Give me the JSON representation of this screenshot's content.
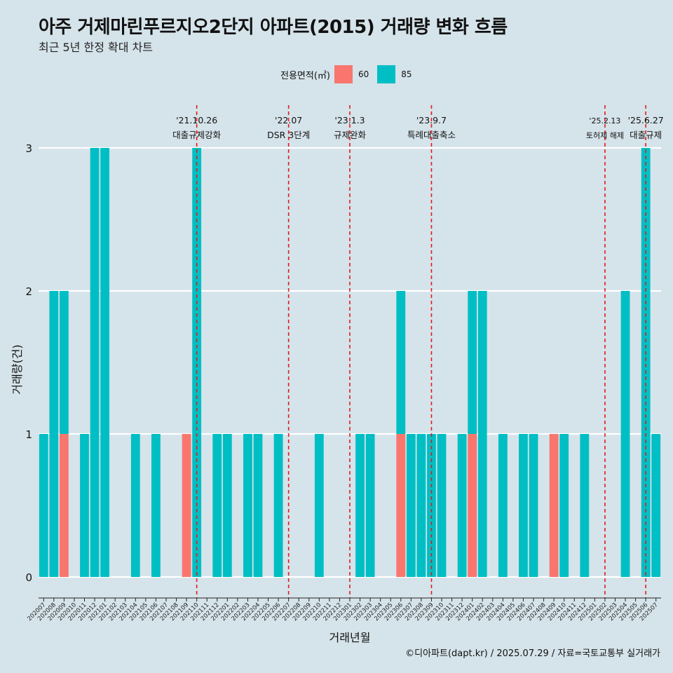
{
  "chart_data": {
    "type": "bar",
    "title": "아주 거제마린푸르지오2단지 아파트(2015) 거래량 변화 흐름",
    "subtitle": "최근 5년 한정 확대 차트",
    "xlabel": "거래년월",
    "ylabel": "거래량(건)",
    "ylim": [
      0,
      3
    ],
    "yticks": [
      0,
      1,
      2,
      3
    ],
    "legend_title": "전용면적(㎡)",
    "legend_position": "top",
    "grid": "horizontal",
    "categories": [
      "202007",
      "202008",
      "202009",
      "202010",
      "202011",
      "202012",
      "202101",
      "202102",
      "202103",
      "202104",
      "202105",
      "202106",
      "202107",
      "202108",
      "202109",
      "202110",
      "202111",
      "202112",
      "202201",
      "202202",
      "202203",
      "202204",
      "202205",
      "202206",
      "202207",
      "202208",
      "202209",
      "202210",
      "202211",
      "202212",
      "202301",
      "202302",
      "202303",
      "202304",
      "202305",
      "202306",
      "202307",
      "202308",
      "202309",
      "202310",
      "202311",
      "202312",
      "202401",
      "202402",
      "202403",
      "202404",
      "202405",
      "202406",
      "202407",
      "202408",
      "202409",
      "202410",
      "202411",
      "202412",
      "202501",
      "202502",
      "202503",
      "202504",
      "202505",
      "202506",
      "202507"
    ],
    "series": [
      {
        "name": "60",
        "color": "#f8766d",
        "values": [
          0,
          0,
          1,
          0,
          0,
          0,
          0,
          0,
          0,
          0,
          0,
          0,
          0,
          0,
          1,
          0,
          0,
          0,
          0,
          0,
          0,
          0,
          0,
          0,
          0,
          0,
          0,
          0,
          0,
          0,
          0,
          0,
          0,
          0,
          0,
          1,
          0,
          0,
          0,
          0,
          0,
          0,
          1,
          0,
          0,
          0,
          0,
          0,
          0,
          0,
          1,
          0,
          0,
          0,
          0,
          0,
          0,
          0,
          0,
          0,
          0
        ]
      },
      {
        "name": "85",
        "color": "#00bfc4",
        "values": [
          1,
          2,
          1,
          0,
          1,
          3,
          3,
          0,
          0,
          1,
          0,
          1,
          0,
          0,
          0,
          3,
          0,
          1,
          1,
          0,
          1,
          1,
          0,
          1,
          0,
          0,
          0,
          1,
          0,
          0,
          0,
          1,
          1,
          0,
          0,
          1,
          1,
          1,
          1,
          1,
          0,
          1,
          1,
          2,
          0,
          1,
          0,
          1,
          1,
          0,
          0,
          1,
          0,
          1,
          0,
          0,
          0,
          2,
          0,
          3,
          1
        ]
      }
    ],
    "annotations": [
      {
        "date": "'21.10.26",
        "label": "대출규제강화",
        "x": "202110"
      },
      {
        "date": "'22.07",
        "label": "DSR 3단계",
        "x": "202207"
      },
      {
        "date": "'23.1.3",
        "label": "규제완화",
        "x": "202301"
      },
      {
        "date": "'23.9.7",
        "label": "특례대출축소",
        "x": "202309"
      },
      {
        "date": "'25.2.13",
        "label": "토허제 해제",
        "x": "202502"
      },
      {
        "date": "'25.6.27",
        "label": "대출규제",
        "x": "202506"
      }
    ]
  },
  "caption": "©디아파트(dapt.kr) / 2025.07.29 / 자료=국토교통부 실거래가"
}
